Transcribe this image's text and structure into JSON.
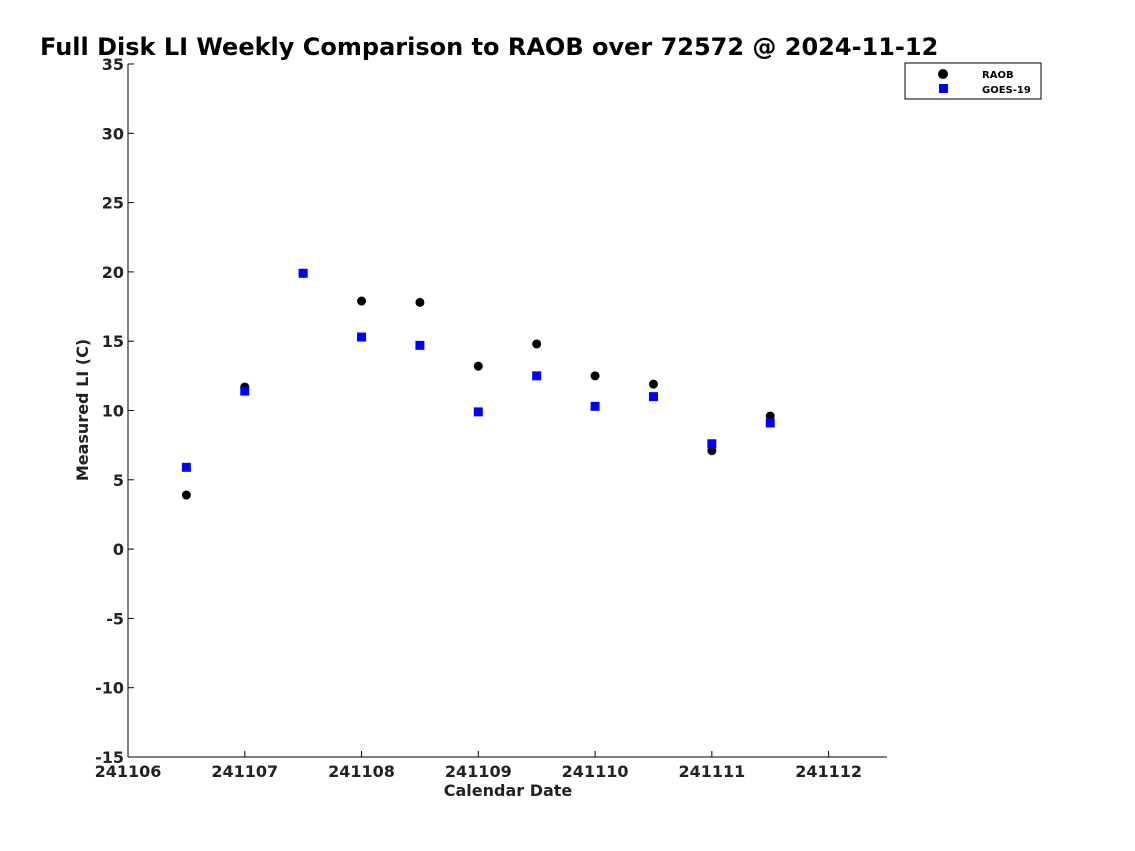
{
  "chart_data": {
    "type": "scatter",
    "title": "Full Disk LI Weekly Comparison to RAOB over 72572 @ 2024-11-12",
    "xlabel": "Calendar Date",
    "ylabel": "Measured LI (C)",
    "x_ticks": [
      "241106",
      "241107",
      "241108",
      "241109",
      "241110",
      "241111",
      "241112"
    ],
    "x_tick_values": [
      0,
      1,
      2,
      3,
      4,
      5,
      6
    ],
    "xlim": [
      0,
      6.5
    ],
    "ylim": [
      -15,
      35
    ],
    "y_ticks": [
      -15,
      -10,
      -5,
      0,
      5,
      10,
      15,
      20,
      25,
      30,
      35
    ],
    "grid": false,
    "legend_position": "top-right",
    "series": [
      {
        "name": "RAOB",
        "marker": "circle",
        "color": "#000000",
        "x": [
          0.5,
          1.0,
          1.5,
          2.0,
          2.5,
          3.0,
          3.5,
          4.0,
          4.5,
          5.0,
          5.5
        ],
        "y": [
          3.9,
          11.7,
          19.9,
          17.9,
          17.8,
          13.2,
          14.8,
          12.5,
          11.9,
          7.1,
          9.6
        ]
      },
      {
        "name": "GOES-19",
        "marker": "square",
        "color": "#0000ff",
        "x": [
          0.5,
          1.0,
          1.5,
          2.0,
          2.5,
          3.0,
          3.5,
          4.0,
          4.5,
          5.0,
          5.5
        ],
        "y": [
          5.9,
          11.4,
          19.9,
          15.3,
          14.7,
          9.9,
          12.5,
          10.3,
          11.0,
          7.6,
          9.1
        ]
      }
    ]
  }
}
